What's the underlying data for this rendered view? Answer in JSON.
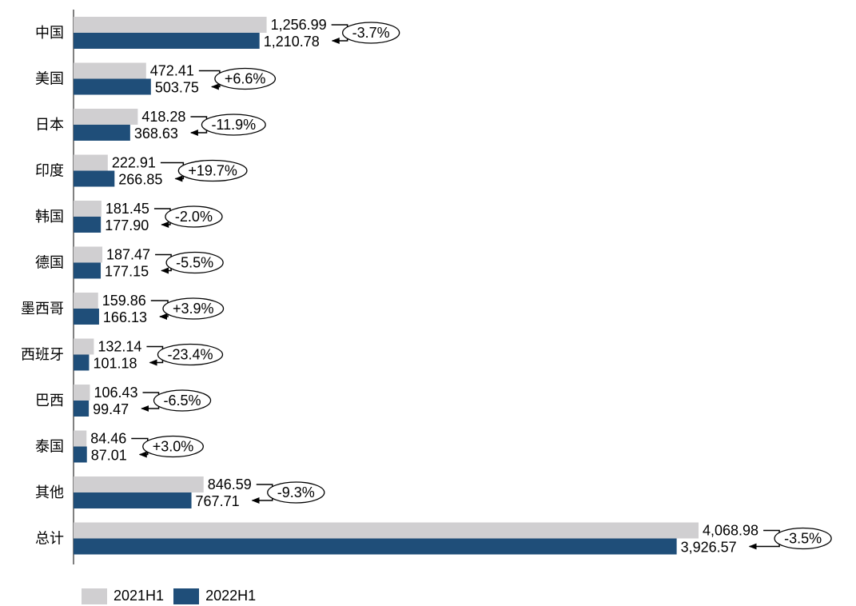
{
  "chart_data": {
    "type": "bar",
    "orientation": "horizontal",
    "categories": [
      "中国",
      "美国",
      "日本",
      "印度",
      "韩国",
      "德国",
      "墨西哥",
      "西班牙",
      "巴西",
      "泰国",
      "其他",
      "总计"
    ],
    "series": [
      {
        "name": "2021H1",
        "color": "#d0cfd1",
        "values": [
          1256.99,
          472.41,
          418.28,
          222.91,
          181.45,
          187.47,
          159.86,
          132.14,
          106.43,
          84.46,
          846.59,
          4068.98
        ],
        "labels": [
          "1,256.99",
          "472.41",
          "418.28",
          "222.91",
          "181.45",
          "187.47",
          "159.86",
          "132.14",
          "106.43",
          "84.46",
          "846.59",
          "4,068.98"
        ]
      },
      {
        "name": "2022H1",
        "color": "#1f4e79",
        "values": [
          1210.78,
          503.75,
          368.63,
          266.85,
          177.9,
          177.15,
          166.13,
          101.18,
          99.47,
          87.01,
          767.71,
          3926.57
        ],
        "labels": [
          "1,210.78",
          "503.75",
          "368.63",
          "266.85",
          "177.90",
          "177.15",
          "166.13",
          "101.18",
          "99.47",
          "87.01",
          "767.71",
          "3,926.57"
        ]
      }
    ],
    "changes": [
      "-3.7%",
      "+6.6%",
      "-11.9%",
      "+19.7%",
      "-2.0%",
      "-5.5%",
      "+3.9%",
      "-23.4%",
      "-6.5%",
      "+3.0%",
      "-9.3%",
      "-3.5%"
    ],
    "xlim": [
      0,
      4068.98
    ],
    "grid": false,
    "legend_position": "bottom-left"
  }
}
